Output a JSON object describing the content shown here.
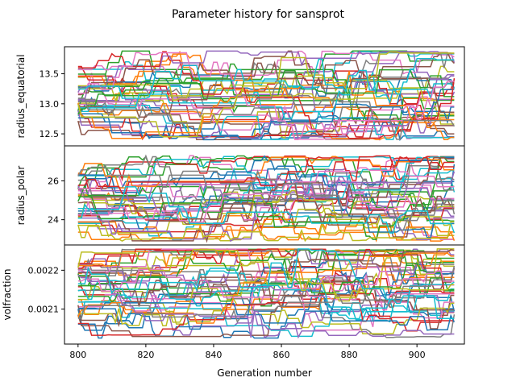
{
  "chart_data": {
    "type": "line",
    "title": "Parameter history for sansprot",
    "xlabel": "Generation number",
    "xlim": [
      796,
      914
    ],
    "x_ticks": [
      800,
      820,
      840,
      860,
      880,
      900
    ],
    "x_tick_labels": [
      "800",
      "820",
      "840",
      "860",
      "880",
      "900"
    ],
    "x_range": [
      800,
      911
    ],
    "series_count": 40,
    "palette": [
      "#1f77b4",
      "#ff7f0e",
      "#2ca02c",
      "#d62728",
      "#9467bd",
      "#8c564b",
      "#e377c2",
      "#7f7f7f",
      "#bcbd22",
      "#17becf"
    ],
    "grid": false,
    "legend": "none",
    "panels": [
      {
        "ylabel": "radius_equatorial",
        "ylim": [
          12.3,
          13.95
        ],
        "y_ticks": [
          12.5,
          13.0,
          13.5
        ],
        "y_tick_labels": [
          "12.5",
          "13.0",
          "13.5"
        ],
        "value_range": [
          12.4,
          13.88
        ],
        "seed": 11
      },
      {
        "ylabel": "radius_polar",
        "ylim": [
          22.7,
          27.8
        ],
        "y_ticks": [
          24,
          26
        ],
        "y_tick_labels": [
          "24",
          "26"
        ],
        "value_range": [
          22.9,
          27.3
        ],
        "seed": 23
      },
      {
        "ylabel": "volfraction",
        "ylim": [
          0.00201,
          0.002265
        ],
        "y_ticks": [
          0.0021,
          0.0022
        ],
        "y_tick_labels": [
          "0.0021",
          "0.0022"
        ],
        "value_range": [
          0.002025,
          0.002255
        ],
        "seed": 37
      }
    ]
  }
}
